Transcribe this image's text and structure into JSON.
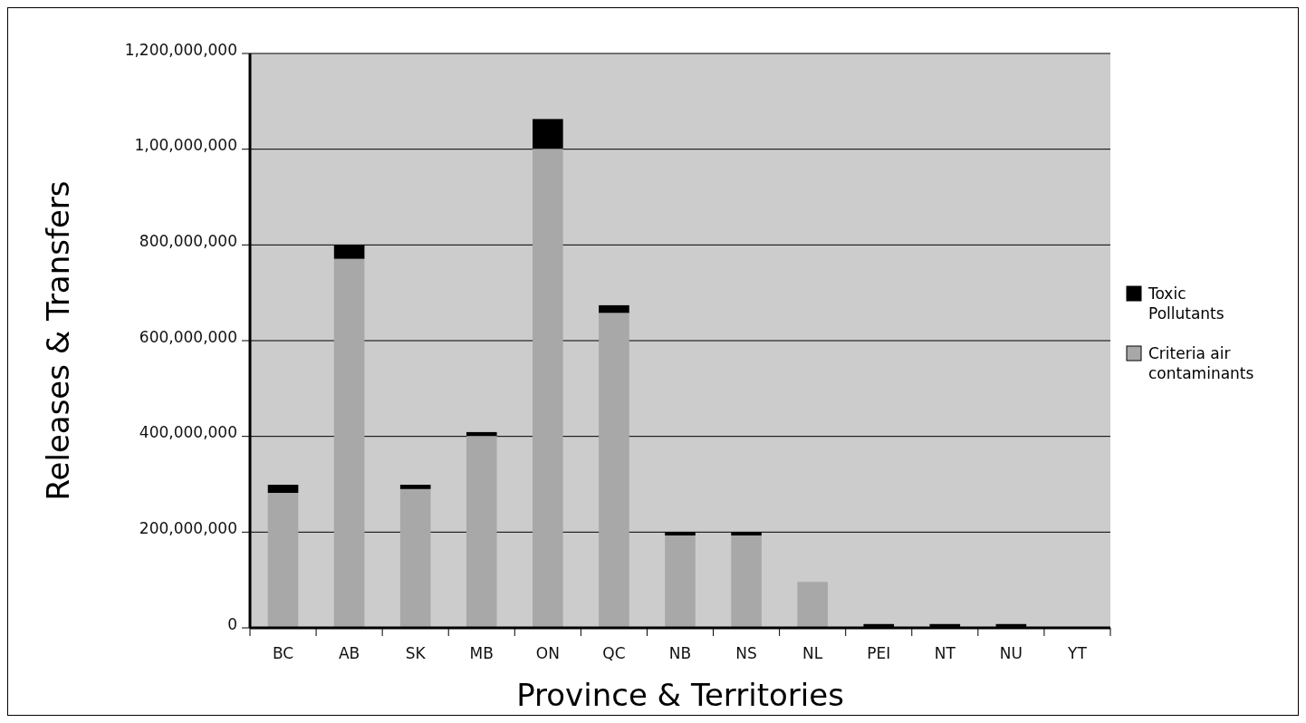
{
  "chart_data": {
    "type": "bar",
    "stacked": true,
    "xlabel": "Province & Territories",
    "ylabel": "Releases & Transfers",
    "categories": [
      "BC",
      "AB",
      "SK",
      "MB",
      "ON",
      "QC",
      "NB",
      "NS",
      "NL",
      "PEI",
      "NT",
      "NU",
      "YT"
    ],
    "series": [
      {
        "name": "Criteria air contaminants",
        "color": "#a8a8a8",
        "values": [
          282000000,
          771000000,
          290000000,
          401000000,
          1001000000,
          658000000,
          193000000,
          193000000,
          96000000,
          2000000,
          2000000,
          2000000,
          0
        ]
      },
      {
        "name": "Toxic Pollutants",
        "color": "#000000",
        "values": [
          17000000,
          29000000,
          9000000,
          8000000,
          62000000,
          16000000,
          7000000,
          7000000,
          0,
          6000000,
          6000000,
          6000000,
          0
        ]
      }
    ],
    "ylim": [
      0,
      1200000000
    ],
    "yticks": [
      {
        "value": 0,
        "label": "0"
      },
      {
        "value": 200000000,
        "label": "200,000,000"
      },
      {
        "value": 400000000,
        "label": "400,000,000"
      },
      {
        "value": 600000000,
        "label": "600,000,000"
      },
      {
        "value": 800000000,
        "label": "800,000,000"
      },
      {
        "value": 1000000000,
        "label": "1,00,000,000"
      },
      {
        "value": 1200000000,
        "label": "1,200,000,000"
      }
    ],
    "grid": "y",
    "legend": "right"
  }
}
